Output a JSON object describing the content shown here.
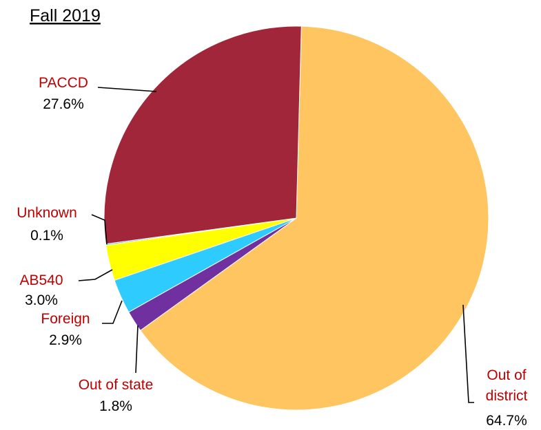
{
  "chart_data": {
    "type": "pie",
    "title": "Fall 2019",
    "start_angle_deg": 1.5,
    "direction": "clockwise",
    "label_color": "#c00000",
    "slices": [
      {
        "name": "Out of district",
        "value": 64.7,
        "label": "64.7%",
        "color": "#ffc561",
        "display_lines": [
          "Out of",
          "district"
        ]
      },
      {
        "name": "Out of state",
        "value": 1.8,
        "label": "1.8%",
        "color": "#7030a0",
        "display_lines": [
          "Out of state"
        ]
      },
      {
        "name": "Foreign",
        "value": 2.9,
        "label": "2.9%",
        "color": "#2ecbff",
        "display_lines": [
          "Foreign"
        ]
      },
      {
        "name": "AB540",
        "value": 3.0,
        "label": "3.0%",
        "color": "#ffff00",
        "display_lines": [
          "AB540"
        ]
      },
      {
        "name": "Unknown",
        "value": 0.1,
        "label": "0.1%",
        "color": "#12a3c2",
        "display_lines": [
          "Unknown"
        ]
      },
      {
        "name": "PACCD",
        "value": 27.6,
        "label": "27.6%",
        "color": "#a12639",
        "display_lines": [
          "PACCD"
        ]
      }
    ]
  }
}
